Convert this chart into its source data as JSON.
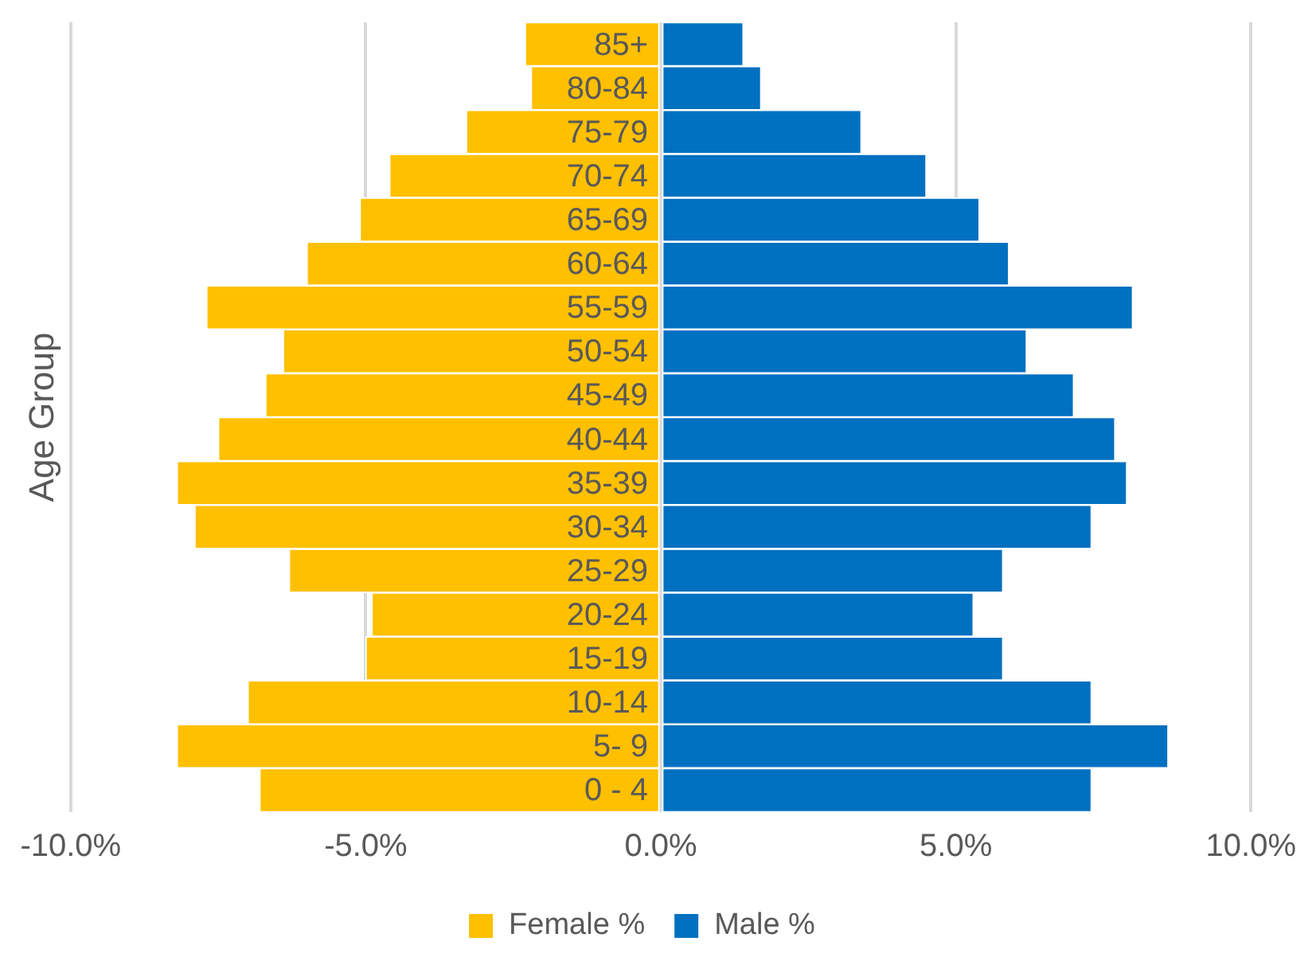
{
  "chart_data": {
    "type": "bar",
    "orientation": "horizontal",
    "stacked": true,
    "ylabel": "Age Group",
    "categories": [
      "85+",
      "80-84",
      "75-79",
      "70-74",
      "65-69",
      "60-64",
      "55-59",
      "50-54",
      "45-49",
      "40-44",
      "35-39",
      "30-34",
      "25-29",
      "20-24",
      "15-19",
      "10-14",
      "5- 9",
      "0 - 4"
    ],
    "series": [
      {
        "name": "Female %",
        "color": "#ffc000",
        "values": [
          -2.3,
          -2.2,
          -3.3,
          -4.6,
          -5.1,
          -6.0,
          -7.7,
          -6.4,
          -6.7,
          -7.5,
          -8.2,
          -7.9,
          -6.3,
          -4.9,
          -5.0,
          -7.0,
          -8.2,
          -6.8
        ]
      },
      {
        "name": "Male %",
        "color": "#0070c0",
        "values": [
          1.4,
          1.7,
          3.4,
          4.5,
          5.4,
          5.9,
          8.0,
          6.2,
          7.0,
          7.7,
          7.9,
          7.3,
          5.8,
          5.3,
          5.8,
          7.3,
          8.6,
          7.3
        ]
      }
    ],
    "xlim": [
      -10,
      10
    ],
    "xticks": [
      {
        "value": -10,
        "label": "-10.0%"
      },
      {
        "value": -5,
        "label": "-5.0%"
      },
      {
        "value": 0,
        "label": "0.0%"
      },
      {
        "value": 5,
        "label": "5.0%"
      },
      {
        "value": 10,
        "label": "10.0%"
      }
    ],
    "grid": "x",
    "legend": "bottom"
  }
}
